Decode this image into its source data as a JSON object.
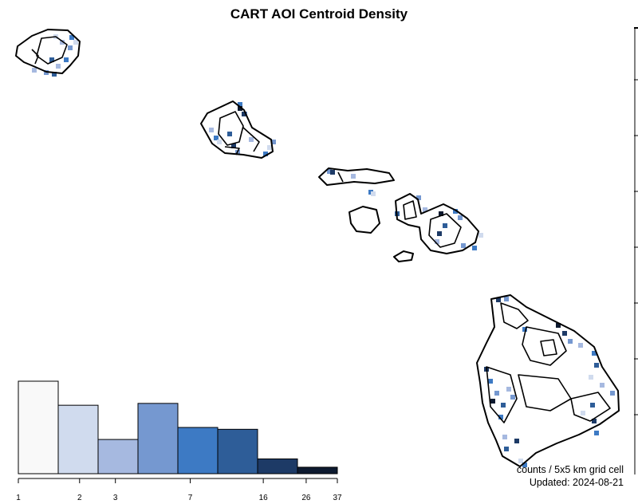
{
  "title": "CART AOI Centroid Density",
  "footer": {
    "counts_label": "counts / 5x5 km grid cell",
    "updated": "Updated: 2024-08-21"
  },
  "colors": {
    "scale": [
      "#f9f9f9",
      "#d0dbee",
      "#a6b9e0",
      "#7598d0",
      "#3d7ac4",
      "#2e5d98",
      "#1d3a66",
      "#0d1a30"
    ],
    "outline": "#000000"
  },
  "chart_data": {
    "type": "bar",
    "xscale": "log",
    "tick_labels": [
      "1",
      "2",
      "3",
      "7",
      "16",
      "26",
      "37"
    ],
    "tick_values": [
      1,
      2,
      3,
      7,
      16,
      26,
      37
    ],
    "bins": [
      {
        "from": 1,
        "to": 2,
        "relative_height": 1.0
      },
      {
        "from": 2,
        "to": 3,
        "relative_height": 0.74
      },
      {
        "from": 3,
        "to": 5,
        "relative_height": 0.37
      },
      {
        "from": 5,
        "to": 7,
        "relative_height": 0.76
      },
      {
        "from": 7,
        "to": 11,
        "relative_height": 0.5
      },
      {
        "from": 11,
        "to": 16,
        "relative_height": 0.48
      },
      {
        "from": 16,
        "to": 26,
        "relative_height": 0.16
      },
      {
        "from": 26,
        "to": 37,
        "relative_height": 0.07
      }
    ]
  },
  "density_cells": [
    [
      1,
      67,
      43
    ],
    [
      4,
      87,
      44
    ],
    [
      2,
      75,
      50
    ],
    [
      3,
      85,
      57
    ],
    [
      1,
      92,
      50
    ],
    [
      5,
      62,
      72
    ],
    [
      4,
      80,
      72
    ],
    [
      2,
      40,
      85
    ],
    [
      3,
      55,
      88
    ],
    [
      5,
      65,
      90
    ],
    [
      2,
      70,
      80
    ],
    [
      4,
      298,
      128
    ],
    [
      7,
      298,
      133
    ],
    [
      3,
      304,
      140
    ],
    [
      6,
      303,
      140
    ],
    [
      2,
      262,
      160
    ],
    [
      4,
      268,
      170
    ],
    [
      1,
      272,
      175
    ],
    [
      5,
      285,
      165
    ],
    [
      6,
      290,
      180
    ],
    [
      3,
      295,
      188
    ],
    [
      2,
      312,
      172
    ],
    [
      4,
      330,
      190
    ],
    [
      1,
      335,
      182
    ],
    [
      3,
      340,
      175
    ],
    [
      3,
      410,
      212
    ],
    [
      6,
      414,
      213
    ],
    [
      2,
      440,
      218
    ],
    [
      4,
      462,
      238
    ],
    [
      1,
      465,
      240
    ],
    [
      5,
      495,
      265
    ],
    [
      3,
      522,
      245
    ],
    [
      2,
      530,
      260
    ],
    [
      7,
      550,
      265
    ],
    [
      4,
      568,
      262
    ],
    [
      3,
      574,
      270
    ],
    [
      5,
      555,
      280
    ],
    [
      2,
      545,
      300
    ],
    [
      6,
      548,
      290
    ],
    [
      1,
      600,
      292
    ],
    [
      4,
      592,
      308
    ],
    [
      3,
      578,
      305
    ],
    [
      6,
      622,
      373
    ],
    [
      3,
      632,
      372
    ],
    [
      4,
      655,
      410
    ],
    [
      7,
      697,
      405
    ],
    [
      6,
      705,
      415
    ],
    [
      3,
      712,
      425
    ],
    [
      2,
      725,
      430
    ],
    [
      4,
      742,
      440
    ],
    [
      5,
      745,
      455
    ],
    [
      1,
      738,
      470
    ],
    [
      2,
      752,
      480
    ],
    [
      3,
      765,
      490
    ],
    [
      5,
      740,
      505
    ],
    [
      1,
      728,
      515
    ],
    [
      6,
      742,
      525
    ],
    [
      4,
      745,
      540
    ],
    [
      6,
      607,
      460
    ],
    [
      4,
      612,
      475
    ],
    [
      7,
      615,
      500
    ],
    [
      3,
      620,
      490
    ],
    [
      5,
      628,
      505
    ],
    [
      2,
      635,
      485
    ],
    [
      4,
      625,
      520
    ],
    [
      3,
      640,
      495
    ],
    [
      2,
      630,
      545
    ],
    [
      5,
      632,
      560
    ],
    [
      1,
      650,
      575
    ],
    [
      4,
      655,
      580
    ],
    [
      6,
      645,
      550
    ]
  ]
}
